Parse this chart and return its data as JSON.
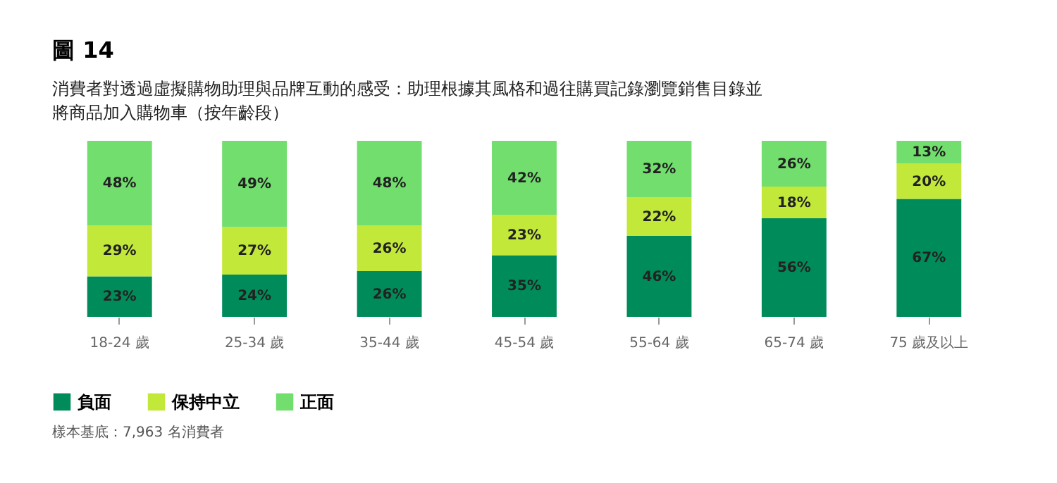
{
  "chart_data": {
    "type": "bar",
    "title": "圖 14",
    "subtitle": "消費者對透過虛擬購物助理與品牌互動的感受：助理根據其風格和過往購買記錄瀏覽銷售目錄並將商品加入購物車（按年齡段）",
    "categories": [
      "18-24 歲",
      "25-34 歲",
      "35-44 歲",
      "45-54 歲",
      "55-64 歲",
      "65-74 歲",
      "75 歲及以上"
    ],
    "stacked": true,
    "legend": "bottom",
    "grid": false,
    "tick_labels": "x",
    "series": [
      {
        "name": "負面",
        "color": "#008c5a",
        "values": [
          23,
          24,
          26,
          35,
          46,
          56,
          67
        ],
        "value_labels": [
          "23%",
          "24%",
          "26%",
          "35%",
          "46%",
          "56%",
          "67%"
        ]
      },
      {
        "name": "保持中立",
        "color": "#c2e83a",
        "values": [
          29,
          27,
          26,
          23,
          22,
          18,
          20
        ],
        "value_labels": [
          "29%",
          "27%",
          "26%",
          "23%",
          "22%",
          "18%",
          "20%"
        ]
      },
      {
        "name": "正面",
        "color": "#72de6e",
        "values": [
          48,
          49,
          48,
          42,
          32,
          26,
          13
        ],
        "value_labels": [
          "48%",
          "49%",
          "48%",
          "42%",
          "32%",
          "26%",
          "13%"
        ]
      }
    ],
    "annotations": [
      "樣本基底：7,963 名消費者"
    ]
  }
}
